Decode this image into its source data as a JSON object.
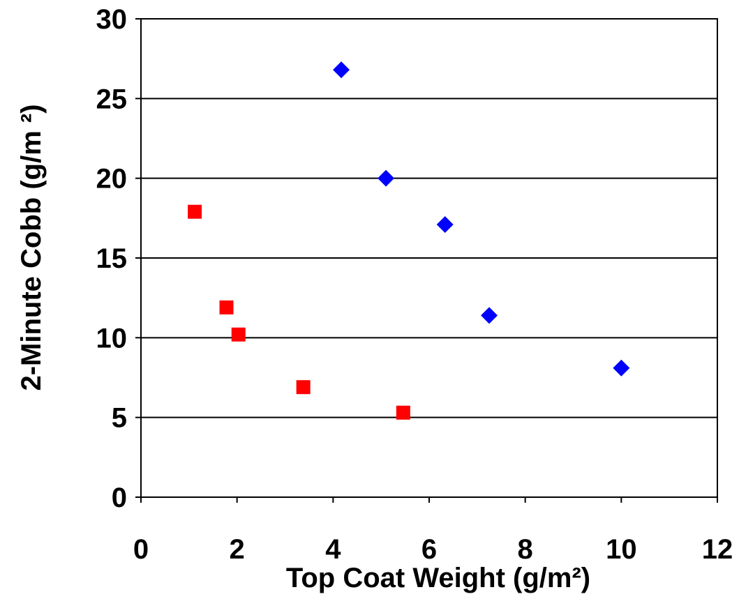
{
  "chart_data": {
    "type": "scatter",
    "xlabel": "Top Coat Weight (g/m²)",
    "ylabel": "2-Minute Cobb (g/m ²)",
    "xlim": [
      0,
      12
    ],
    "ylim": [
      0,
      30
    ],
    "x_ticks": [
      0,
      2,
      4,
      6,
      8,
      10,
      12
    ],
    "y_ticks": [
      0,
      5,
      10,
      15,
      20,
      25,
      30
    ],
    "grid": "horizontal",
    "legend": "none",
    "series": [
      {
        "marker": "diamond",
        "color": "#0000ff",
        "points": [
          {
            "x": 4.17,
            "y": 26.8
          },
          {
            "x": 5.1,
            "y": 20.0
          },
          {
            "x": 6.33,
            "y": 17.1
          },
          {
            "x": 7.25,
            "y": 11.4
          },
          {
            "x": 10.0,
            "y": 8.1
          }
        ]
      },
      {
        "marker": "square",
        "color": "#ff0000",
        "points": [
          {
            "x": 1.12,
            "y": 17.9
          },
          {
            "x": 1.78,
            "y": 11.9
          },
          {
            "x": 2.03,
            "y": 10.2
          },
          {
            "x": 3.38,
            "y": 6.9
          },
          {
            "x": 5.46,
            "y": 5.3
          }
        ]
      }
    ]
  }
}
